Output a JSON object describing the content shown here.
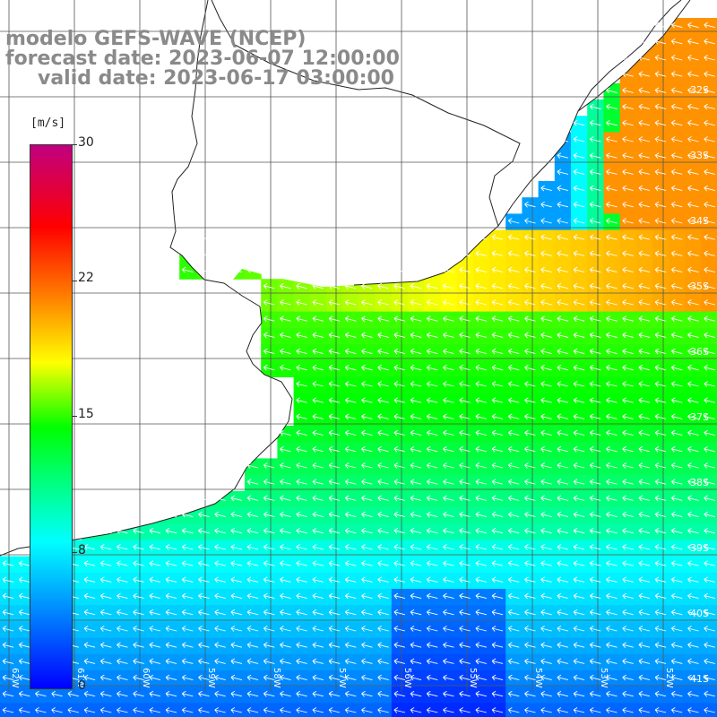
{
  "title": {
    "line1": "modelo GEFS-WAVE (NCEP)",
    "line2": "forecast date: 2023-06-07 12:00:00",
    "line3": "valid date: 2023-06-17 03:00:00"
  },
  "colorbar": {
    "unit": "[m/s]",
    "ticks": [
      "30",
      "22",
      "15",
      "8",
      "0"
    ],
    "range": [
      0,
      30
    ]
  },
  "map": {
    "latitude_labels": [
      "32S",
      "33S",
      "34S",
      "35S",
      "36S",
      "37S",
      "38S",
      "39S",
      "40S",
      "41S"
    ],
    "longitude_labels": [
      "62W",
      "61W",
      "60W",
      "59W",
      "58W",
      "57W",
      "56W",
      "55W",
      "54W",
      "53W",
      "52W",
      "51W"
    ],
    "grid_color": "#555555",
    "arrow_color": "#ffffff",
    "wind_direction": "from east toward west",
    "colors": {
      "calm": "#0000ff",
      "light": "#00ffff",
      "moderate": "#00ff00",
      "fresh": "#ffff00",
      "strong": "#ff8000"
    }
  }
}
